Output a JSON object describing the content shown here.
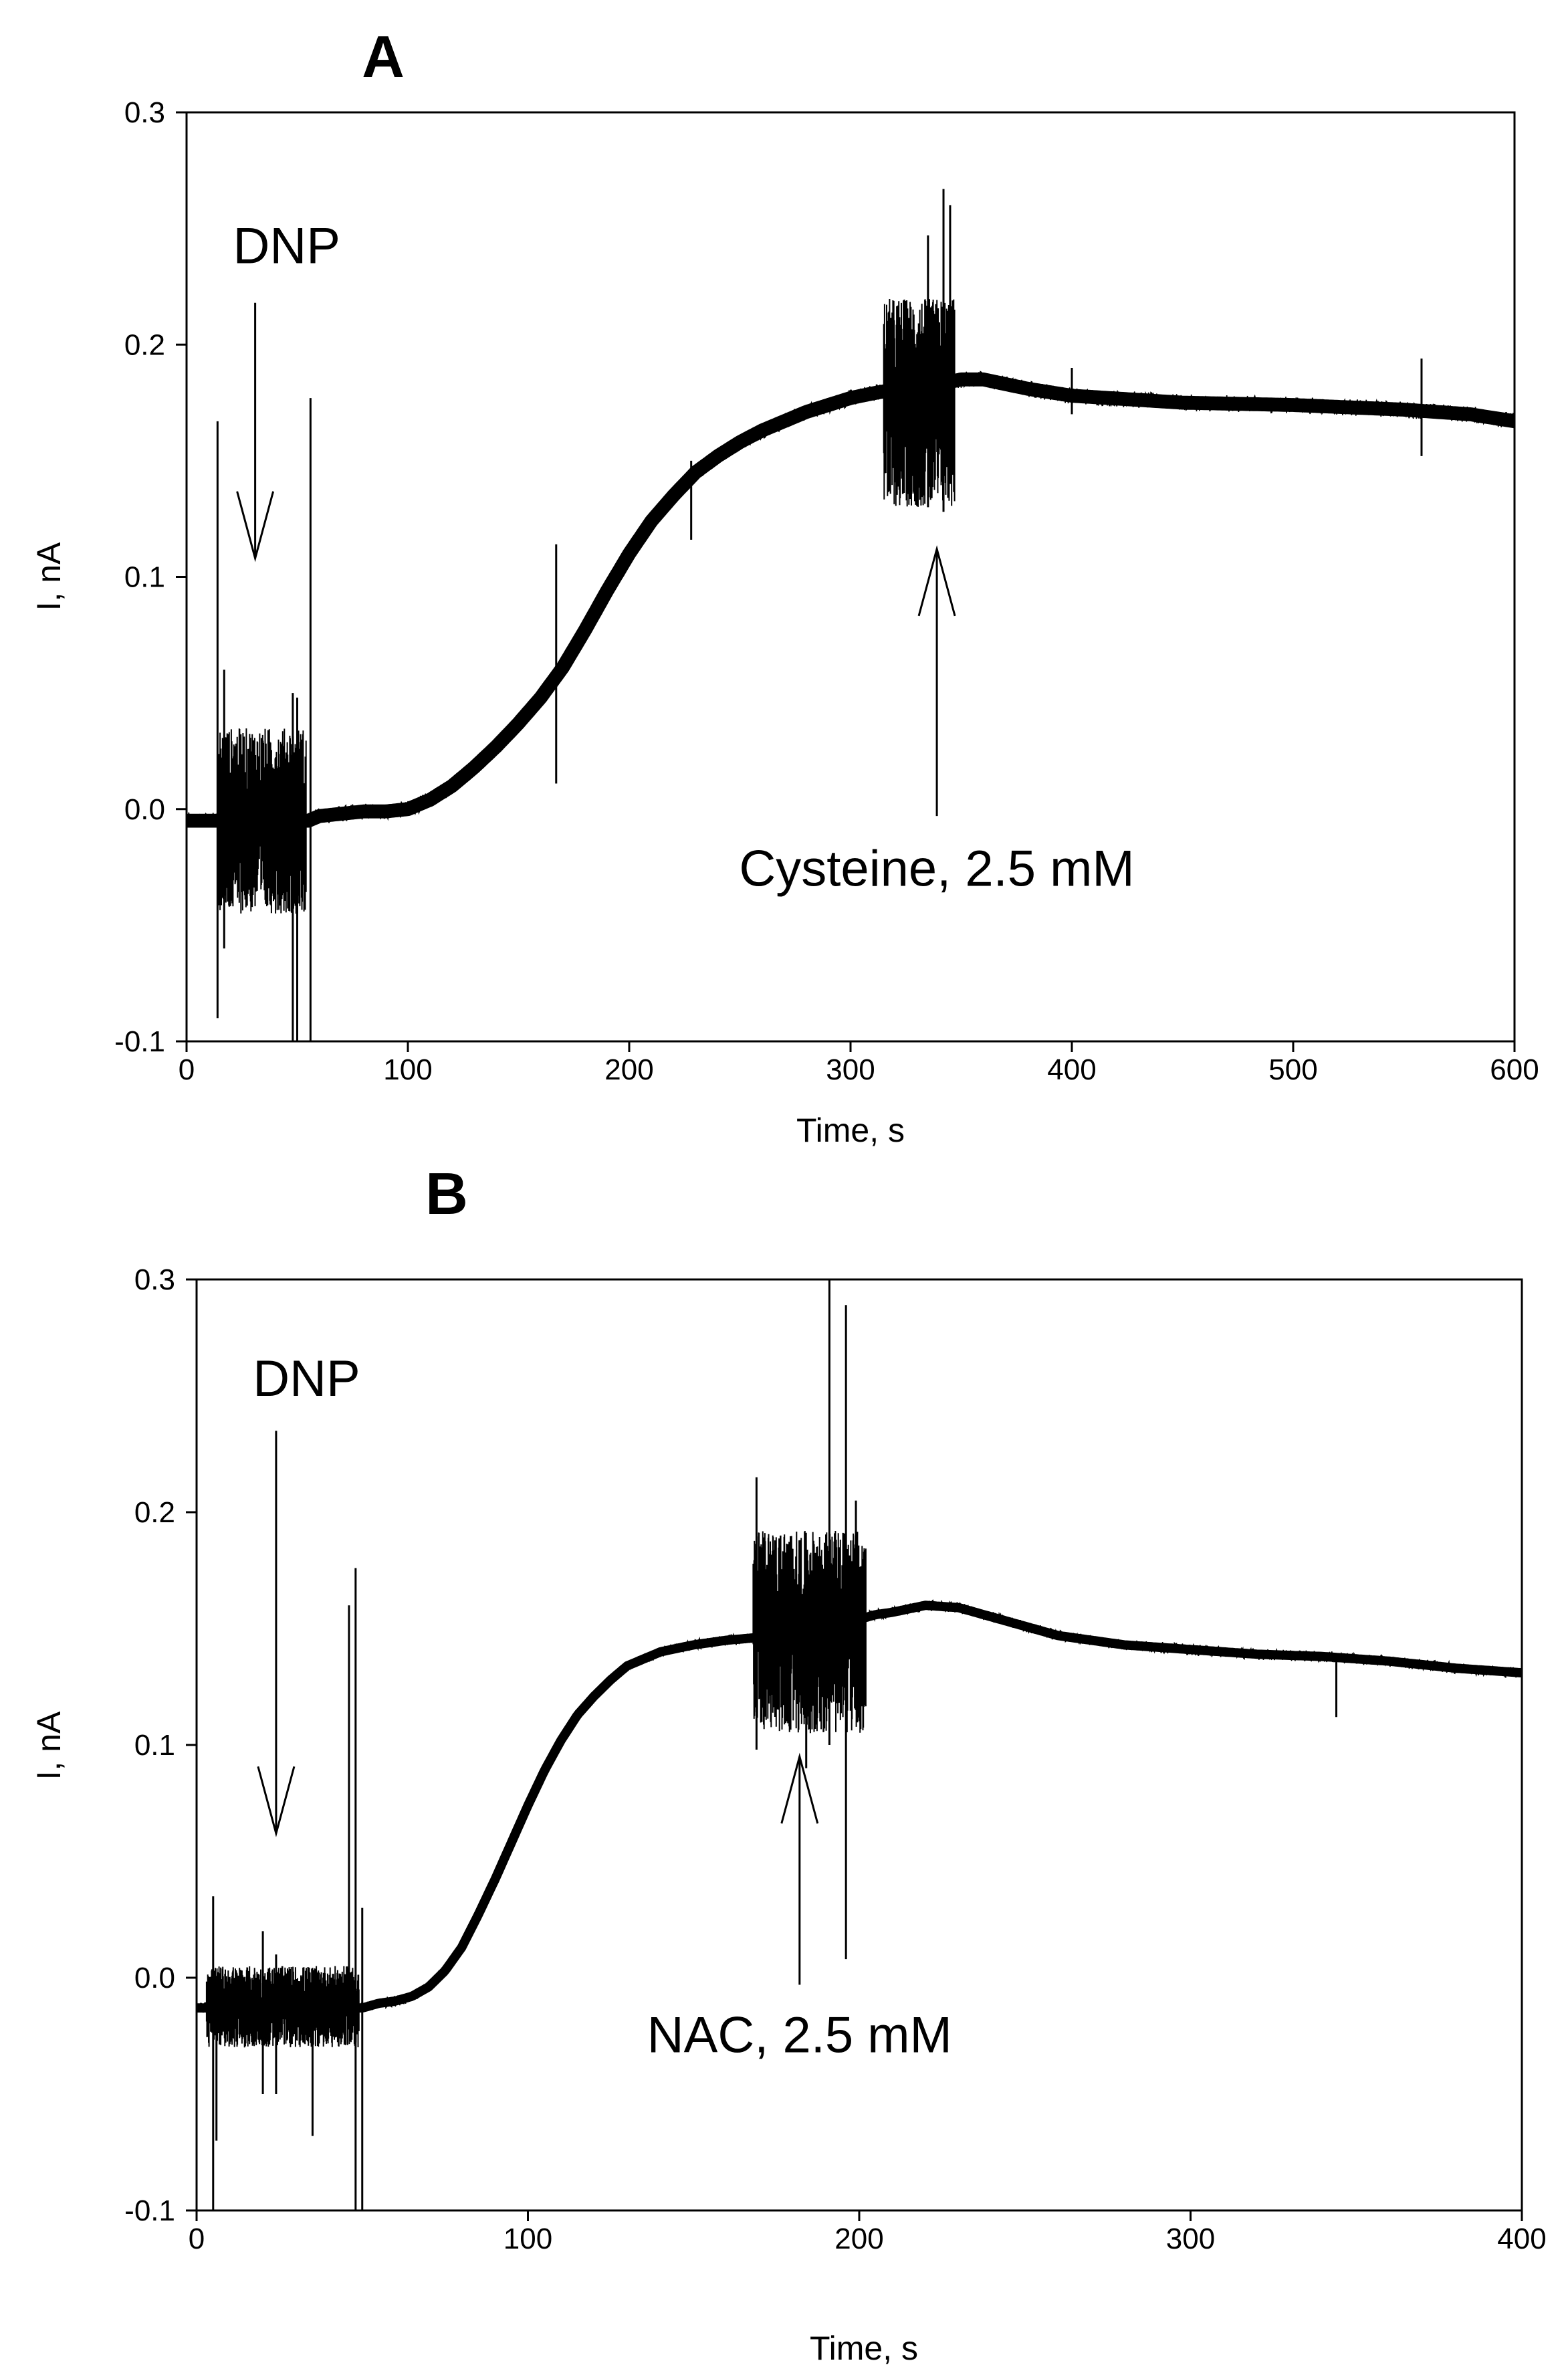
{
  "chart_data": [
    {
      "type": "line",
      "panel": "A",
      "xlabel": "Time, s",
      "ylabel": "I, nA",
      "xlim": [
        0,
        600
      ],
      "ylim": [
        -0.1,
        0.3
      ],
      "xticks": [
        0,
        100,
        200,
        300,
        400,
        500,
        600
      ],
      "yticks": [
        -0.1,
        0.0,
        0.1,
        0.2,
        0.3
      ],
      "xtick_labels": [
        "0",
        "100",
        "200",
        "300",
        "400",
        "500",
        "600"
      ],
      "ytick_labels": [
        "-0.1",
        "0.0",
        "0.1",
        "0.2",
        "0.3"
      ],
      "grid": false,
      "series": [
        {
          "name": "current",
          "x": [
            0,
            12,
            14,
            55,
            60,
            70,
            80,
            90,
            100,
            110,
            120,
            130,
            140,
            150,
            160,
            170,
            180,
            190,
            200,
            210,
            220,
            230,
            240,
            250,
            260,
            270,
            280,
            290,
            300,
            310,
            316,
            345,
            350,
            360,
            380,
            400,
            450,
            500,
            550,
            580,
            600
          ],
          "y": [
            -0.005,
            -0.005,
            -0.005,
            -0.005,
            -0.003,
            -0.002,
            -0.001,
            -0.001,
            0.0,
            0.004,
            0.01,
            0.018,
            0.027,
            0.037,
            0.048,
            0.061,
            0.077,
            0.094,
            0.11,
            0.124,
            0.135,
            0.145,
            0.152,
            0.158,
            0.163,
            0.167,
            0.171,
            0.174,
            0.177,
            0.179,
            0.18,
            0.184,
            0.185,
            0.185,
            0.181,
            0.178,
            0.175,
            0.174,
            0.172,
            0.17,
            0.167
          ],
          "band_halfwidth": 0.003
        }
      ],
      "noise_regions": [
        {
          "x_start": 14,
          "x_end": 54,
          "y_low": -0.045,
          "y_high": 0.035
        },
        {
          "x_start": 315,
          "x_end": 347,
          "y_low": 0.13,
          "y_high": 0.22
        }
      ],
      "spikes": [
        {
          "x": 14,
          "y_low": -0.09,
          "y_high": 0.167
        },
        {
          "x": 17,
          "y_low": -0.06,
          "y_high": 0.06
        },
        {
          "x": 48,
          "y_low": -0.1,
          "y_high": 0.05
        },
        {
          "x": 50,
          "y_low": -0.1,
          "y_high": 0.048
        },
        {
          "x": 56,
          "y_low": -0.1,
          "y_high": 0.177
        },
        {
          "x": 167,
          "y_low": 0.011,
          "y_high": 0.114
        },
        {
          "x": 228,
          "y_low": 0.116,
          "y_high": 0.15
        },
        {
          "x": 335,
          "y_low": 0.13,
          "y_high": 0.247
        },
        {
          "x": 342,
          "y_low": 0.128,
          "y_high": 0.267
        },
        {
          "x": 345,
          "y_low": 0.14,
          "y_high": 0.26
        },
        {
          "x": 400,
          "y_low": 0.17,
          "y_high": 0.19
        },
        {
          "x": 558,
          "y_low": 0.152,
          "y_high": 0.194
        }
      ],
      "annotations": [
        {
          "text": "DNP",
          "arrow_dir": "down",
          "arrow_x": 31,
          "arrow_y_from": 0.218,
          "arrow_y_to": 0.108,
          "text_x": 21,
          "text_y": 0.235
        },
        {
          "text": "Cysteine, 2.5 mM",
          "arrow_dir": "up",
          "arrow_x": 339,
          "arrow_y_from": -0.003,
          "arrow_y_to": 0.112,
          "text_x": 339,
          "text_y": -0.033
        }
      ]
    },
    {
      "type": "line",
      "panel": "B",
      "xlabel": "Time, s",
      "ylabel": "I, nA",
      "xlim": [
        0,
        400
      ],
      "ylim": [
        -0.1,
        0.3
      ],
      "xticks": [
        0,
        100,
        200,
        300,
        400
      ],
      "yticks": [
        -0.1,
        0.0,
        0.1,
        0.2,
        0.3
      ],
      "xtick_labels": [
        "0",
        "100",
        "200",
        "300",
        "400"
      ],
      "ytick_labels": [
        "-0.1",
        "0.0",
        "0.1",
        "0.2",
        "0.3"
      ],
      "grid": false,
      "series": [
        {
          "name": "current",
          "x": [
            0,
            50,
            55,
            60,
            65,
            70,
            75,
            80,
            85,
            90,
            95,
            100,
            105,
            110,
            115,
            120,
            125,
            130,
            140,
            150,
            160,
            168,
            200,
            205,
            210,
            220,
            230,
            240,
            260,
            280,
            300,
            320,
            340,
            360,
            380,
            400
          ],
          "y": [
            -0.013,
            -0.013,
            -0.011,
            -0.01,
            -0.008,
            -0.004,
            0.003,
            0.013,
            0.027,
            0.042,
            0.058,
            0.074,
            0.089,
            0.102,
            0.113,
            0.121,
            0.128,
            0.134,
            0.14,
            0.143,
            0.145,
            0.146,
            0.154,
            0.156,
            0.157,
            0.16,
            0.159,
            0.155,
            0.147,
            0.143,
            0.141,
            0.139,
            0.138,
            0.136,
            0.133,
            0.131
          ],
          "band_halfwidth": 0.002
        }
      ],
      "noise_regions": [
        {
          "x_start": 3,
          "x_end": 49,
          "y_low": -0.03,
          "y_high": 0.005
        },
        {
          "x_start": 168,
          "x_end": 202,
          "y_low": 0.105,
          "y_high": 0.192
        }
      ],
      "spikes": [
        {
          "x": 5,
          "y_low": -0.1,
          "y_high": 0.035
        },
        {
          "x": 6,
          "y_low": -0.07,
          "y_high": 0.0
        },
        {
          "x": 20,
          "y_low": -0.05,
          "y_high": 0.02
        },
        {
          "x": 24,
          "y_low": -0.05,
          "y_high": 0.01
        },
        {
          "x": 35,
          "y_low": -0.068,
          "y_high": 0.0
        },
        {
          "x": 46,
          "y_low": -0.01,
          "y_high": 0.16
        },
        {
          "x": 48,
          "y_low": -0.1,
          "y_high": 0.176
        },
        {
          "x": 50,
          "y_low": -0.1,
          "y_high": 0.03
        },
        {
          "x": 169,
          "y_low": 0.098,
          "y_high": 0.215
        },
        {
          "x": 184,
          "y_low": 0.09,
          "y_high": 0.18
        },
        {
          "x": 191,
          "y_low": 0.1,
          "y_high": 0.3
        },
        {
          "x": 196,
          "y_low": 0.008,
          "y_high": 0.289
        },
        {
          "x": 199,
          "y_low": 0.115,
          "y_high": 0.205
        },
        {
          "x": 344,
          "y_low": 0.112,
          "y_high": 0.138
        }
      ],
      "annotations": [
        {
          "text": "DNP",
          "arrow_dir": "down",
          "arrow_x": 24,
          "arrow_y_from": 0.235,
          "arrow_y_to": 0.062,
          "text_x": 17,
          "text_y": 0.25
        },
        {
          "text": "NAC, 2.5 mM",
          "arrow_dir": "up",
          "arrow_x": 182,
          "arrow_y_from": -0.003,
          "arrow_y_to": 0.095,
          "text_x": 182,
          "text_y": -0.032
        }
      ]
    }
  ]
}
